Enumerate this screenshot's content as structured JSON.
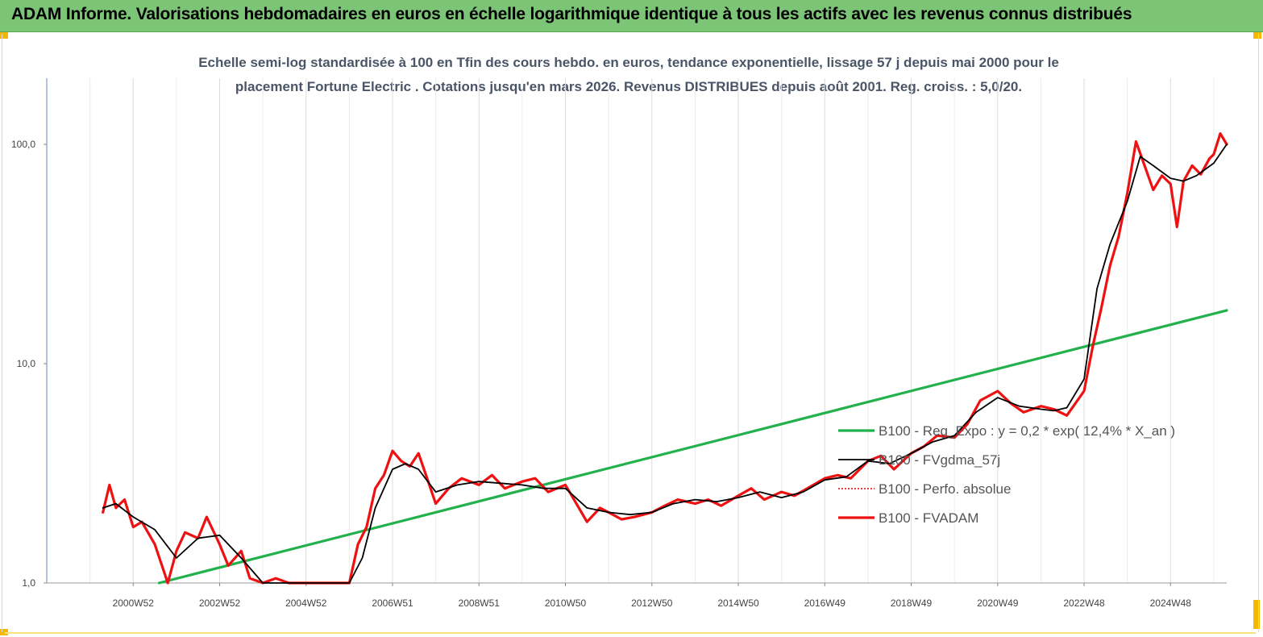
{
  "banner": {
    "title": "ADAM Informe. Valorisations hebdomadaires en euros en échelle logarithmique identique à tous les actifs avec les revenus connus distribués",
    "color": "#7cc576"
  },
  "chart_data": {
    "type": "line",
    "title_line1": "Echelle semi-log standardisée à 100 en Tfin des cours hebdo. en euros, tendance exponentielle, lissage 57 j depuis mai 2000 pour le",
    "title_line2": "placement Fortune Electric . Cotations jusqu'en mars 2026.  Revenus DISTRIBUES depuis août 2001. Reg. croiss. : 5,0/20.",
    "y_scale": "log",
    "ylim": [
      1,
      180
    ],
    "y_ticks": [
      "1,0",
      "10,0",
      "100,0"
    ],
    "y_tick_values": [
      1,
      10,
      100
    ],
    "xlim": [
      1999.0,
      2026.3
    ],
    "x_tick_labels": [
      "2000W52",
      "2002W52",
      "2004W52",
      "2006W51",
      "2008W51",
      "2010W50",
      "2012W50",
      "2014W50",
      "2016W49",
      "2018W49",
      "2020W49",
      "2022W48",
      "2024W48"
    ],
    "x_tick_values": [
      2001,
      2003,
      2005,
      2007,
      2009,
      2011,
      2013,
      2015,
      2017,
      2019,
      2021,
      2023,
      2025
    ],
    "grid": "vertical",
    "legend_position": "right-center",
    "series": [
      {
        "name": "B100 - Reg_Expo : y = 0,2 * exp( 12,4% *  X_an )",
        "color": "#22b14c",
        "style": "solid-thick",
        "x": [
          2001.6,
          2026.3
        ],
        "y": [
          0.8,
          17.5
        ]
      },
      {
        "name": "B100 - FVgdma_57j",
        "color": "#000000",
        "style": "solid",
        "x": [
          2000.3,
          2000.6,
          2001.0,
          2001.5,
          2002.0,
          2002.5,
          2003.0,
          2003.5,
          2004.0,
          2004.5,
          2005.0,
          2005.5,
          2006.0,
          2006.3,
          2006.6,
          2007.0,
          2007.3,
          2007.6,
          2008.0,
          2008.5,
          2009.0,
          2009.5,
          2010.0,
          2010.5,
          2011.0,
          2011.5,
          2012.0,
          2012.5,
          2013.0,
          2013.5,
          2014.0,
          2014.5,
          2015.0,
          2015.5,
          2016.0,
          2016.5,
          2017.0,
          2017.5,
          2018.0,
          2018.5,
          2019.0,
          2019.5,
          2020.0,
          2020.5,
          2021.0,
          2021.5,
          2022.0,
          2022.3,
          2022.6,
          2023.0,
          2023.3,
          2023.6,
          2024.0,
          2024.3,
          2024.6,
          2025.0,
          2025.3,
          2025.6,
          2026.0,
          2026.3
        ],
        "y": [
          2.2,
          2.3,
          2.0,
          1.75,
          1.3,
          1.6,
          1.65,
          1.3,
          1.0,
          0.95,
          0.9,
          0.85,
          0.9,
          1.3,
          2.2,
          3.3,
          3.5,
          3.3,
          2.6,
          2.8,
          2.9,
          2.85,
          2.8,
          2.7,
          2.7,
          2.2,
          2.1,
          2.05,
          2.1,
          2.3,
          2.4,
          2.35,
          2.45,
          2.6,
          2.45,
          2.6,
          2.95,
          3.05,
          3.6,
          3.5,
          3.9,
          4.4,
          4.7,
          6.0,
          7.0,
          6.4,
          6.2,
          6.1,
          6.3,
          8.5,
          22.0,
          35.0,
          55.0,
          88.0,
          80.0,
          70.0,
          68.0,
          72.0,
          82.0,
          100.0
        ]
      },
      {
        "name": "B100 - Perfo. absolue",
        "color": "#e00000",
        "style": "dotted",
        "x": [],
        "y": []
      },
      {
        "name": "B100 - FVADAM",
        "color": "#ee1111",
        "style": "solid-thick",
        "x": [
          2000.3,
          2000.45,
          2000.6,
          2000.8,
          2001.0,
          2001.2,
          2001.5,
          2001.8,
          2002.0,
          2002.2,
          2002.5,
          2002.7,
          2003.0,
          2003.2,
          2003.5,
          2003.7,
          2004.0,
          2004.3,
          2004.6,
          2005.0,
          2005.3,
          2005.6,
          2006.0,
          2006.2,
          2006.4,
          2006.6,
          2006.8,
          2007.0,
          2007.2,
          2007.4,
          2007.6,
          2007.8,
          2008.0,
          2008.3,
          2008.6,
          2009.0,
          2009.3,
          2009.6,
          2010.0,
          2010.3,
          2010.6,
          2011.0,
          2011.2,
          2011.5,
          2011.8,
          2012.0,
          2012.3,
          2012.6,
          2013.0,
          2013.3,
          2013.6,
          2014.0,
          2014.3,
          2014.6,
          2015.0,
          2015.3,
          2015.6,
          2016.0,
          2016.3,
          2016.6,
          2017.0,
          2017.3,
          2017.6,
          2018.0,
          2018.3,
          2018.6,
          2019.0,
          2019.3,
          2019.6,
          2020.0,
          2020.3,
          2020.6,
          2021.0,
          2021.3,
          2021.6,
          2022.0,
          2022.3,
          2022.6,
          2023.0,
          2023.2,
          2023.4,
          2023.6,
          2023.8,
          2024.0,
          2024.2,
          2024.4,
          2024.6,
          2024.8,
          2025.0,
          2025.15,
          2025.3,
          2025.5,
          2025.7,
          2025.9,
          2026.0,
          2026.15,
          2026.3
        ],
        "y": [
          2.1,
          2.8,
          2.2,
          2.4,
          1.8,
          1.9,
          1.5,
          1.0,
          1.4,
          1.7,
          1.6,
          2.0,
          1.5,
          1.2,
          1.4,
          1.05,
          0.95,
          1.05,
          0.95,
          0.85,
          0.95,
          0.85,
          1.0,
          1.5,
          1.8,
          2.7,
          3.1,
          4.0,
          3.6,
          3.4,
          3.9,
          3.0,
          2.3,
          2.7,
          3.0,
          2.8,
          3.1,
          2.7,
          2.9,
          3.0,
          2.6,
          2.8,
          2.4,
          1.9,
          2.2,
          2.1,
          1.95,
          2.0,
          2.1,
          2.25,
          2.4,
          2.3,
          2.4,
          2.25,
          2.5,
          2.7,
          2.4,
          2.6,
          2.5,
          2.7,
          3.0,
          3.1,
          3.0,
          3.6,
          3.8,
          3.3,
          3.9,
          4.2,
          4.7,
          4.6,
          5.3,
          6.8,
          7.5,
          6.6,
          6.0,
          6.4,
          6.2,
          5.8,
          7.5,
          12.0,
          18.0,
          28.0,
          38.0,
          60.0,
          103.0,
          80.0,
          62.0,
          72.0,
          66.0,
          42.0,
          68.0,
          80.0,
          73.0,
          86.0,
          90.0,
          112.0,
          100.0
        ]
      }
    ]
  }
}
